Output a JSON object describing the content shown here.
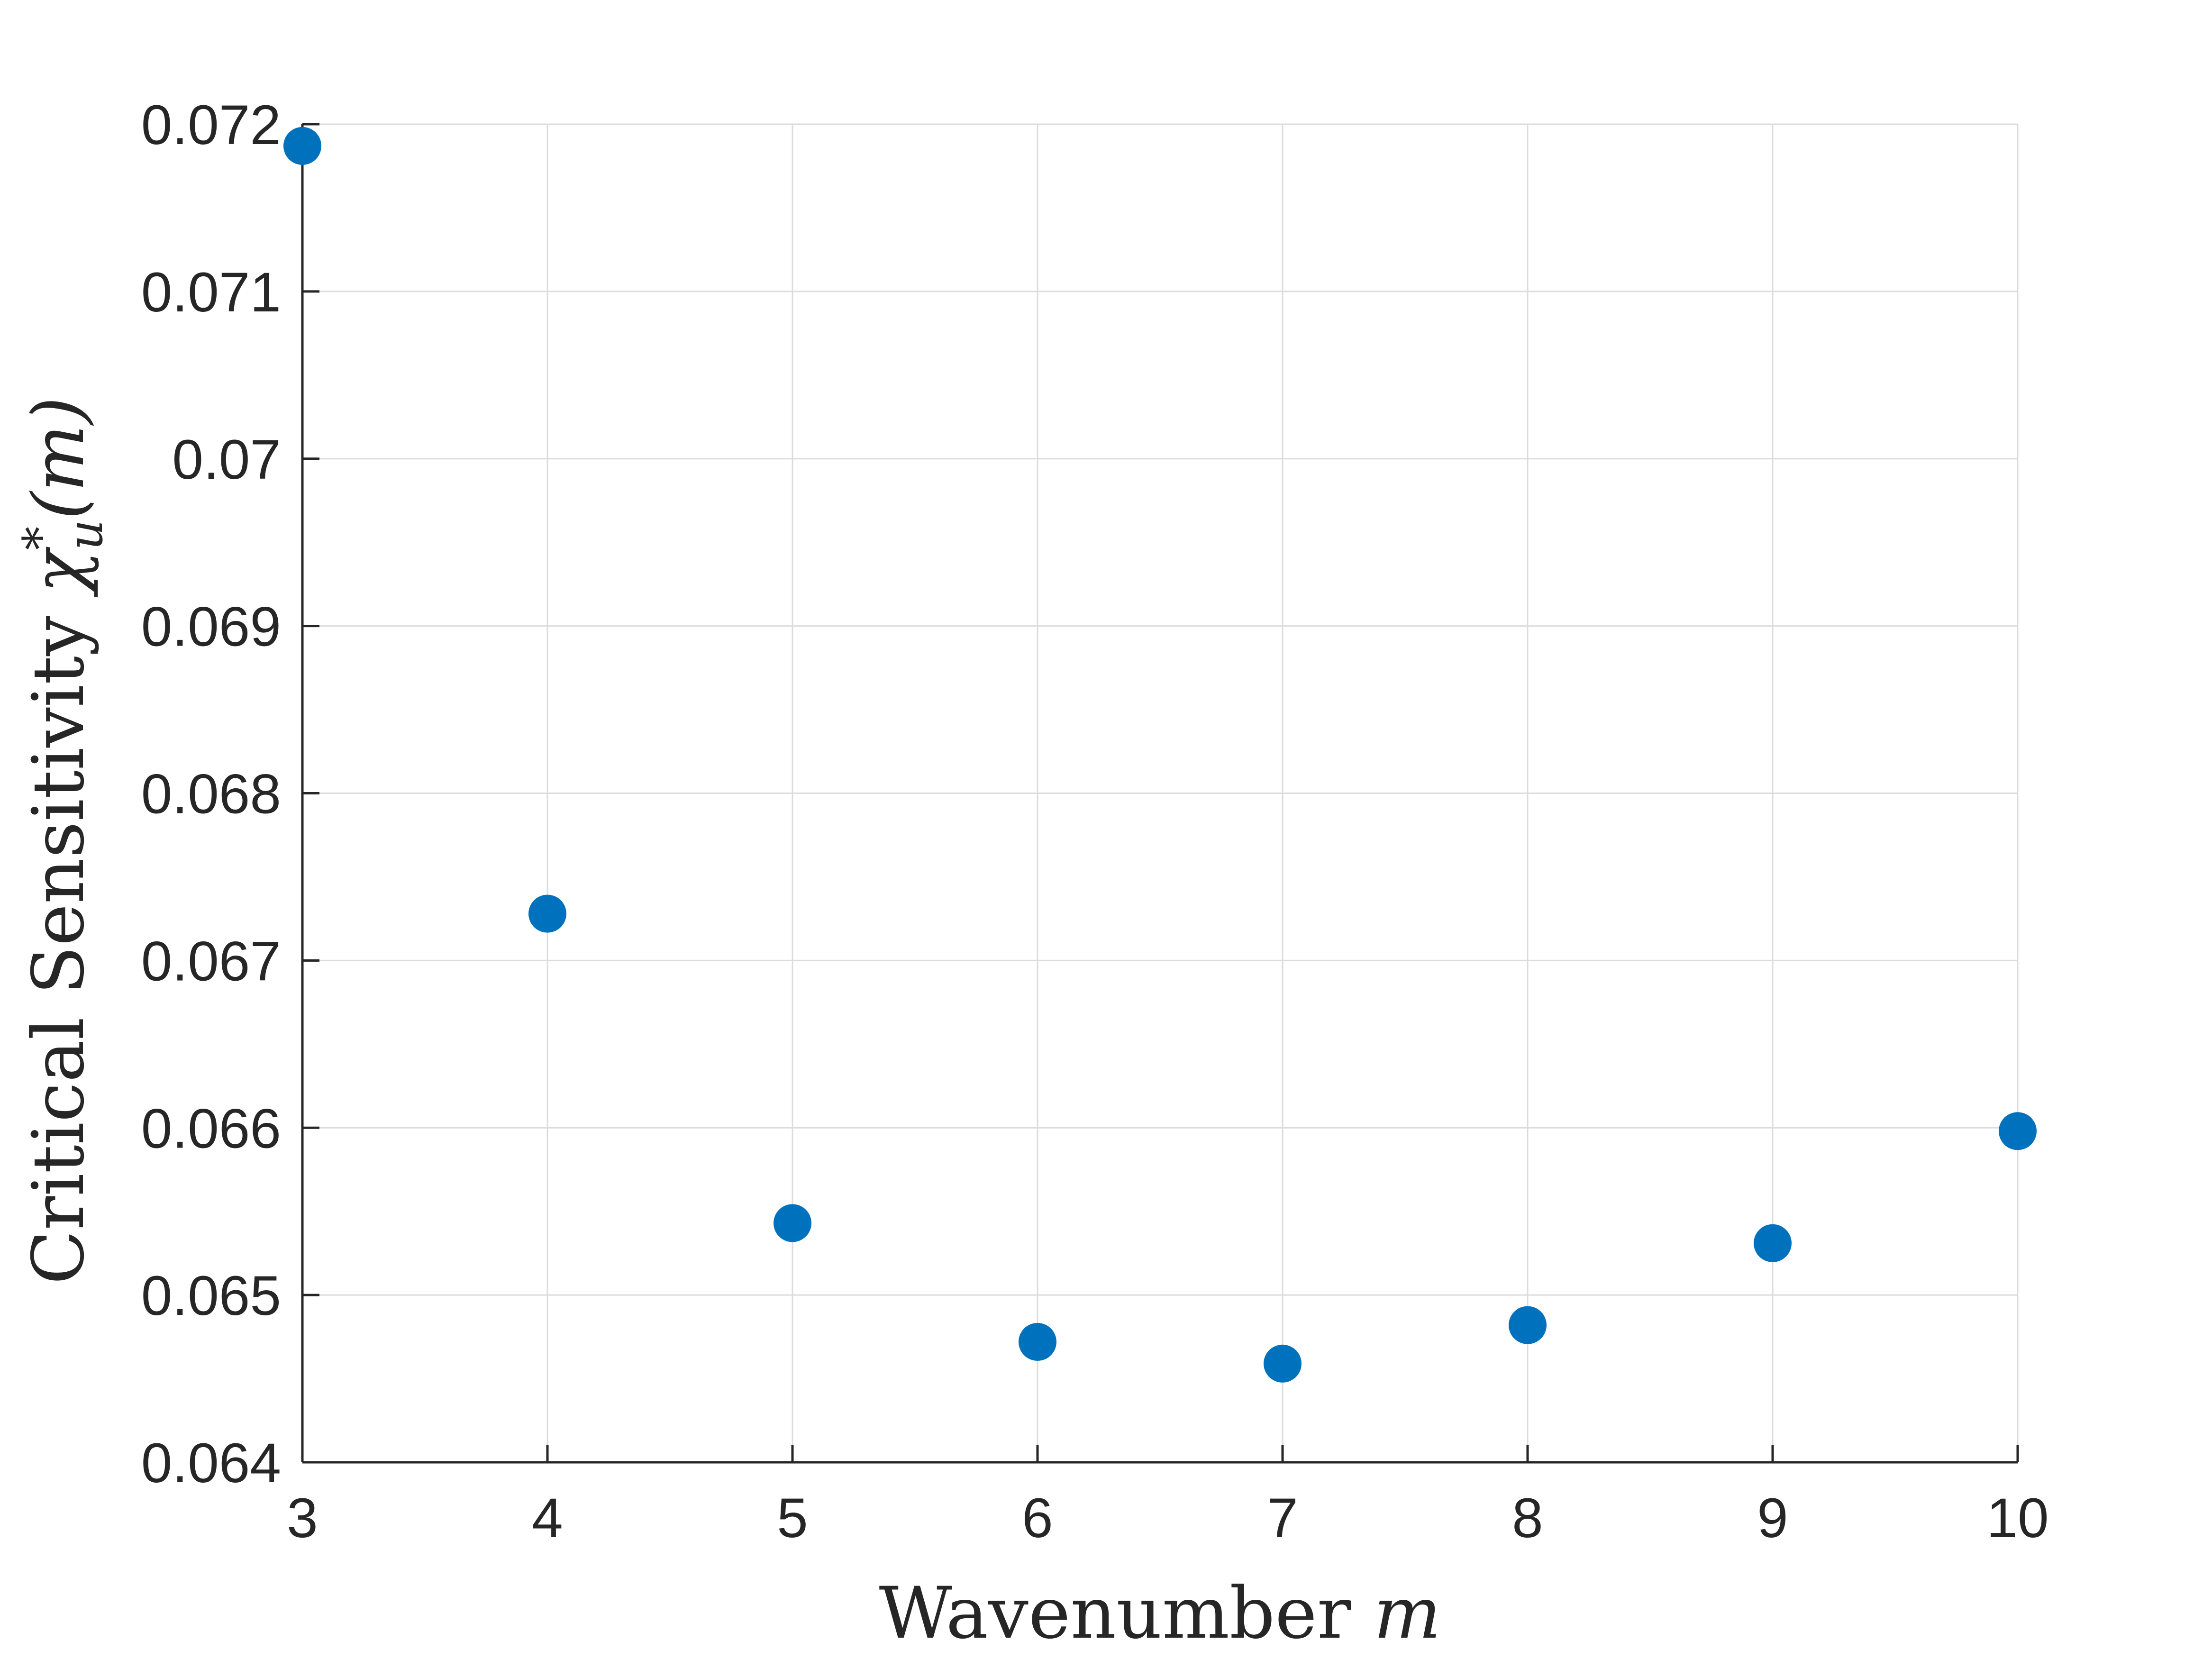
{
  "chart_data": {
    "type": "scatter",
    "title": "",
    "xlabel": "Wavenumber m",
    "xlabel_text": "Wavenumber ",
    "xlabel_math": "m",
    "ylabel": "Critical Sensitivity χ*u(m)",
    "ylabel_text": "Critical Sensitivity ",
    "ylabel_math_base": "χ",
    "ylabel_math_sup": "*",
    "ylabel_math_sub": "u",
    "ylabel_math_tail": "(m)",
    "xlim": [
      3,
      10
    ],
    "ylim": [
      0.064,
      0.072
    ],
    "xticks": [
      3,
      4,
      5,
      6,
      7,
      8,
      9,
      10
    ],
    "xtick_labels": [
      "3",
      "4",
      "5",
      "6",
      "7",
      "8",
      "9",
      "10"
    ],
    "yticks": [
      0.064,
      0.065,
      0.066,
      0.067,
      0.068,
      0.069,
      0.07,
      0.071,
      0.072
    ],
    "ytick_labels": [
      "0.064",
      "0.065",
      "0.066",
      "0.067",
      "0.068",
      "0.069",
      "0.07",
      "0.071",
      "0.072"
    ],
    "grid": true,
    "marker_color": "#0072bd",
    "series": [
      {
        "x": [
          3,
          4,
          5,
          6,
          7,
          8,
          9,
          10
        ],
        "y": [
          0.07187,
          0.06728,
          0.06543,
          0.06472,
          0.06459,
          0.06482,
          0.06531,
          0.06598
        ]
      }
    ]
  }
}
